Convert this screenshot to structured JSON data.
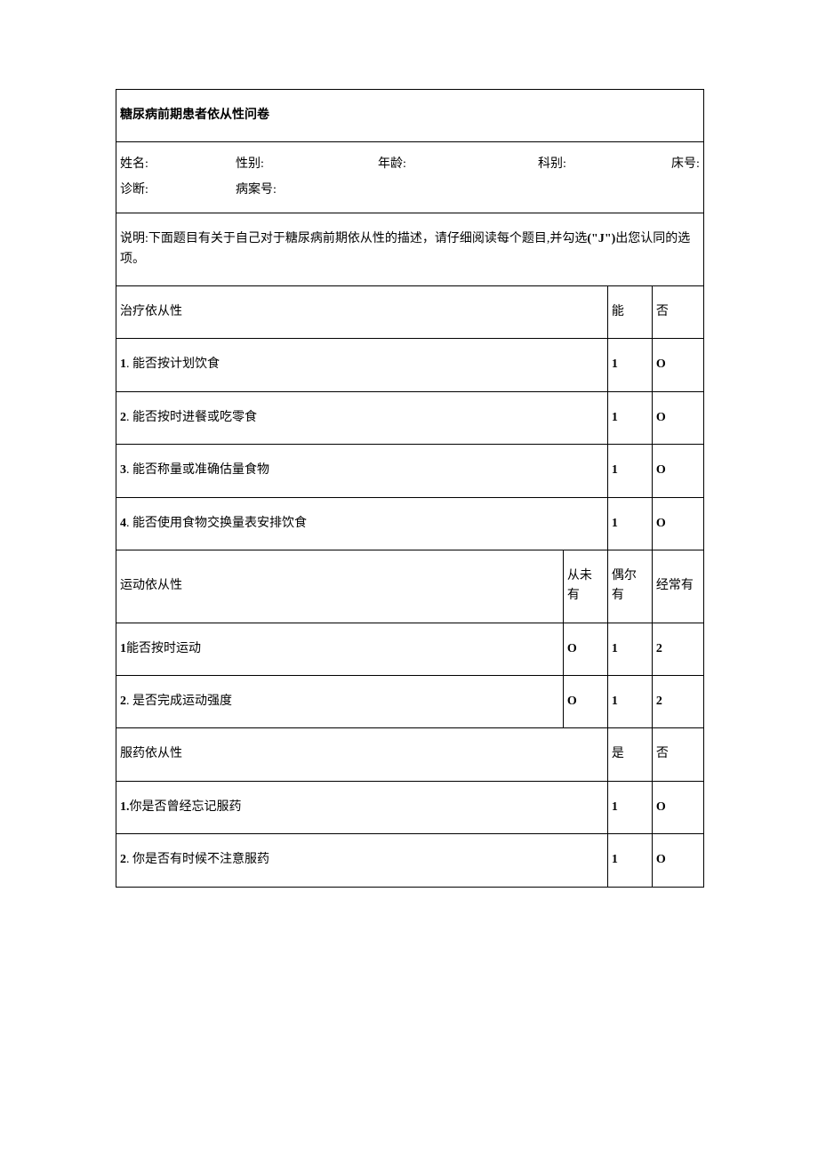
{
  "title": "糖尿病前期患者依从性问卷",
  "patient_info": {
    "name_label": "姓名:",
    "gender_label": "性别:",
    "age_label": "年龄:",
    "dept_label": "科别:",
    "bed_label": "床号:",
    "diagnosis_label": "诊断:",
    "case_label": "病案号:"
  },
  "instruction": {
    "prefix": "说明:下面题目有关于自己对于糖尿病前期依从性的描述，请仔细阅读每个题目,并勾选",
    "bold": "(\"J\")",
    "suffix": "出您认同的选项。"
  },
  "section1": {
    "header": "治疗依从性",
    "col_yes": "能",
    "col_no": "否",
    "questions": [
      {
        "num": "1",
        "text": ". 能否按计划饮食",
        "yes": "1",
        "no": "O"
      },
      {
        "num": "2",
        "text": ". 能否按时进餐或吃零食",
        "yes": "1",
        "no": "O"
      },
      {
        "num": "3",
        "text": ". 能否称量或准确估量食物",
        "yes": "1",
        "no": "O"
      },
      {
        "num": "4",
        "text": ". 能否使用食物交换量表安排饮食",
        "yes": "1",
        "no": "O"
      }
    ]
  },
  "section2": {
    "header": "运动依从性",
    "col_never": "从未有",
    "col_sometimes": "偶尔有",
    "col_often": "经常有",
    "questions": [
      {
        "num": "1",
        "text": "能否按时运动",
        "never": "O",
        "sometimes": "1",
        "often": "2"
      },
      {
        "num": "2",
        "text": ". 是否完成运动强度",
        "never": "O",
        "sometimes": "1",
        "often": "2"
      }
    ]
  },
  "section3": {
    "header": "服药依从性",
    "col_yes": "是",
    "col_no": "否",
    "questions": [
      {
        "num": "1.",
        "text": "你是否曾经忘记服药",
        "yes": "1",
        "no": "O"
      },
      {
        "num": "2",
        "text": ". 你是否有时候不注意服药",
        "yes": "1",
        "no": "O"
      }
    ]
  }
}
